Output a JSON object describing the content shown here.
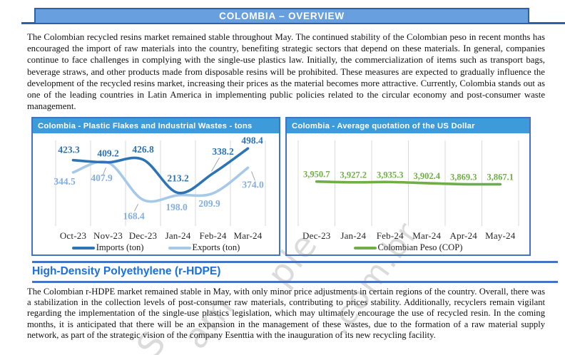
{
  "header": {
    "title": "COLOMBIA – OVERVIEW"
  },
  "intro_paragraph": "The Colombian recycled resins market remained stable throughout May. The continued stability of the Colombian peso in recent months has encouraged the import of raw materials into the country, benefiting strategic sectors that depend on these materials. In general, companies continue to face challenges in complying with the single-use plastics law. Initially, the commercialization of items such as transport bags, beverage straws, and other products made from disposable resins will be prohibited. These measures are expected to gradually influence the development of the recycled resins market, increasing their prices as the material becomes more attractive. Currently, Colombia stands out as one of the leading countries in Latin America in implementing public policies related to the circular economy and post-consumer waste management.",
  "section": {
    "heading": "High-Density Polyethylene (r-HDPE)",
    "paragraph": "The Colombian r-HDPE market remained stable in May, with only minor price adjustments in certain regions of the country. Overall, there was a stabilization in the collection levels of post-consumer raw materials, contributing to prices stability. Additionally, recyclers remain vigilant regarding the implementation of the single-use plastics legislation, which may ultimately encourage the use of recycled resin. In the coming months, it is anticipated that there will be an expansion in the management of these wastes, due to the formation of a raw material supply network, as part of the strategic vision of the company Esenttia with the inauguration of its new recycling facility."
  },
  "colors": {
    "title_bar_fill": "#68A0DF",
    "title_bar_border": "#2B62AC",
    "chart_header_fill": "#3D9BD9",
    "chart_border": "#4472C4",
    "section_heading_blue": "#1B6FDE",
    "imports_blue": "#2E74B5",
    "exports_light_blue": "#A6C9E8",
    "peso_green": "#70AD47",
    "gridline_gray": "#D9D9D9"
  },
  "chart_data": [
    {
      "type": "line",
      "title": "Colombia - Plastic Flakes and Industrial Wastes - tons",
      "categories": [
        "Oct-23",
        "Nov-23",
        "Dec-23",
        "Jan-24",
        "Feb-24",
        "Mar-24"
      ],
      "series": [
        {
          "name": "Imports (ton)",
          "color": "#2E74B5",
          "label_color": "#2E74B5",
          "values": [
            423.3,
            409.2,
            426.8,
            213.2,
            338.2,
            498.4
          ]
        },
        {
          "name": "Exports (ton)",
          "color": "#A6C9E8",
          "label_color": "#85AEDC",
          "values": [
            344.5,
            407.9,
            168.4,
            198.0,
            209.9,
            374.0
          ]
        }
      ],
      "ylim": [
        0,
        550
      ],
      "grid": "vertical-only",
      "legend_position": "bottom",
      "smooth_lines": true,
      "data_labels": true
    },
    {
      "type": "line",
      "title": "Colombia - Average quotation of the US Dollar",
      "categories": [
        "Dec-23",
        "Jan-24",
        "Feb-24",
        "Mar-24",
        "Apr-24",
        "May-24"
      ],
      "series": [
        {
          "name": "Colombian Peso (COP)",
          "color": "#70AD47",
          "label_color": "#70AD47",
          "values": [
            3950.7,
            3927.2,
            3935.3,
            3902.4,
            3869.3,
            3867.1
          ]
        }
      ],
      "ylim": [
        2600,
        5200
      ],
      "grid": "vertical-only",
      "legend_position": "bottom",
      "smooth_lines": true,
      "data_labels": true
    }
  ],
  "watermark": {
    "fragments": [
      "S",
      "am",
      "ple",
      ".com.br"
    ]
  }
}
